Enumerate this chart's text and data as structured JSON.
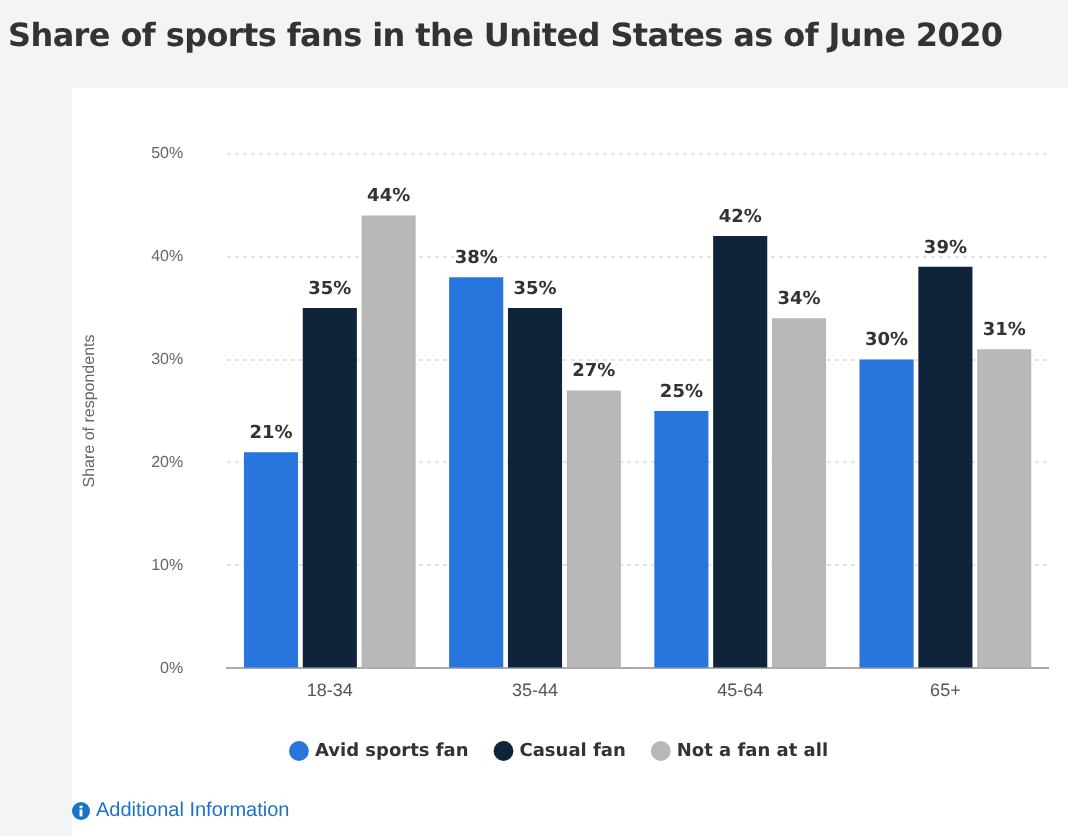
{
  "chart_data": {
    "type": "bar",
    "title": "Share of sports fans in the United States as of June 2020",
    "ylabel": "Share of respondents",
    "categories": [
      "18-34",
      "35-44",
      "45-64",
      "65+"
    ],
    "series": [
      {
        "name": "Avid sports fan",
        "color": "#2876dd",
        "values": [
          21,
          38,
          25,
          30
        ],
        "value_labels": [
          "21%",
          "38%",
          "25%",
          "30%"
        ]
      },
      {
        "name": "Casual fan",
        "color": "#0f243a",
        "values": [
          35,
          35,
          42,
          39
        ],
        "value_labels": [
          "35%",
          "35%",
          "42%",
          "39%"
        ]
      },
      {
        "name": "Not a fan at all",
        "color": "#b8b8b8",
        "values": [
          44,
          27,
          34,
          31
        ],
        "value_labels": [
          "44%",
          "27%",
          "34%",
          "31%"
        ]
      }
    ],
    "ylim": [
      0,
      50
    ],
    "yticks": [
      {
        "value": 0,
        "label": "0%"
      },
      {
        "value": 10,
        "label": "10%"
      },
      {
        "value": 20,
        "label": "20%"
      },
      {
        "value": 30,
        "label": "30%"
      },
      {
        "value": 40,
        "label": "40%"
      },
      {
        "value": 50,
        "label": "50%"
      }
    ],
    "grid": "y",
    "legend": "bottom",
    "annotations": [
      "Additional Information"
    ]
  }
}
